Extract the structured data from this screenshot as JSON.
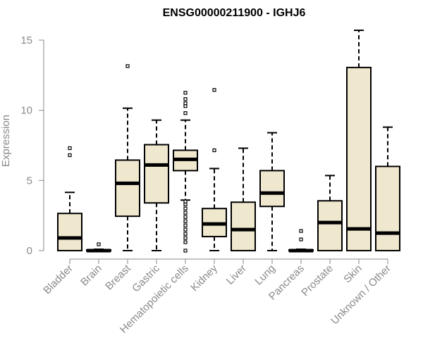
{
  "chart_data": {
    "type": "boxplot",
    "title": "ENSG00000211900 - IGHJ6",
    "ylabel": "Expression",
    "xlabel": "",
    "ylim": [
      0,
      15.5
    ],
    "yticks": [
      0,
      5,
      10,
      15
    ],
    "grid": false,
    "legend": "none",
    "colors": {
      "box_fill": "#efe8cf",
      "stroke": "#000000",
      "axis": "#8a8a8a"
    },
    "categories": [
      "Bladder",
      "Brain",
      "Breast",
      "Gastric",
      "Hematopoietic cells",
      "Kidney",
      "Liver",
      "Lung",
      "Pancreas",
      "Prostate",
      "Skin",
      "Unknown / Other"
    ],
    "boxes": [
      {
        "category": "Bladder",
        "whisker_low": 0,
        "q1": 0,
        "median": 0.9,
        "q3": 2.65,
        "whisker_high": 4.15,
        "outliers": [
          6.8,
          7.3
        ]
      },
      {
        "category": "Brain",
        "whisker_low": 0,
        "q1": 0,
        "median": 0,
        "q3": 0.05,
        "whisker_high": 0.1,
        "outliers": [
          0.45
        ]
      },
      {
        "category": "Breast",
        "whisker_low": 0,
        "q1": 2.45,
        "median": 4.8,
        "q3": 6.45,
        "whisker_high": 10.15,
        "outliers": [
          13.15
        ]
      },
      {
        "category": "Gastric",
        "whisker_low": 0,
        "q1": 3.4,
        "median": 6.1,
        "q3": 7.55,
        "whisker_high": 9.3,
        "outliers": []
      },
      {
        "category": "Hematopoietic cells",
        "whisker_low": 3.6,
        "q1": 5.7,
        "median": 6.5,
        "q3": 7.15,
        "whisker_high": 9.3,
        "outliers": [
          0,
          0.6,
          0.9,
          1.2,
          1.5,
          1.8,
          2.1,
          2.4,
          2.7,
          3.0,
          3.3,
          3.5,
          9.8,
          10.3,
          10.5,
          10.8,
          11.25
        ]
      },
      {
        "category": "Kidney",
        "whisker_low": 0,
        "q1": 1.0,
        "median": 1.9,
        "q3": 3.0,
        "whisker_high": 5.85,
        "outliers": [
          7.15,
          11.45
        ]
      },
      {
        "category": "Liver",
        "whisker_low": 0,
        "q1": 0,
        "median": 1.5,
        "q3": 3.45,
        "whisker_high": 7.3,
        "outliers": []
      },
      {
        "category": "Lung",
        "whisker_low": 0,
        "q1": 3.15,
        "median": 4.1,
        "q3": 5.7,
        "whisker_high": 8.4,
        "outliers": []
      },
      {
        "category": "Pancreas",
        "whisker_low": 0,
        "q1": 0,
        "median": 0,
        "q3": 0.05,
        "whisker_high": 0.1,
        "outliers": [
          0.8,
          1.4
        ]
      },
      {
        "category": "Prostate",
        "whisker_low": 0,
        "q1": 0,
        "median": 2.0,
        "q3": 3.55,
        "whisker_high": 5.35,
        "outliers": []
      },
      {
        "category": "Skin",
        "whisker_low": 0,
        "q1": 0,
        "median": 1.55,
        "q3": 13.05,
        "whisker_high": 15.7,
        "outliers": []
      },
      {
        "category": "Unknown / Other",
        "whisker_low": 0,
        "q1": 0,
        "median": 1.25,
        "q3": 6.0,
        "whisker_high": 8.8,
        "outliers": []
      }
    ]
  }
}
